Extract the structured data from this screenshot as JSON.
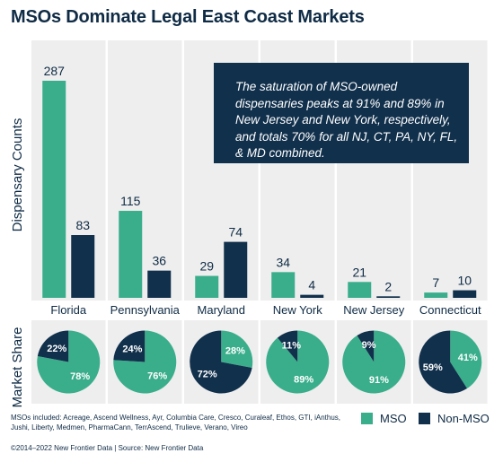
{
  "title": "MSOs Dominate Legal East Coast Markets",
  "callout": "The saturation of MSO-owned dispensaries peaks at 91% and 89% in New Jersey and New York, respectively, and totals 70% for all NJ, CT, PA, NY, FL, & MD combined.",
  "colors": {
    "mso": "#3aae8b",
    "non_mso": "#11304c",
    "panel": "#eeeeee",
    "text": "#0f2b45"
  },
  "legend": {
    "mso": "MSO",
    "non_mso": "Non-MSO"
  },
  "footnote": "MSOs included: Acreage, Ascend Wellness, Ayr, Columbia Care, Cresco, Curaleaf, Ethos, GTI, iAnthus, Jushi, Liberty, Medmen, PharmaCann, TerrAscend, Trulieve, Verano, Vireo",
  "copyright": "©2014–2022 New Frontier Data | Source: New Frontier Data",
  "chart_data": [
    {
      "type": "bar",
      "ylabel": "Dispensary Counts",
      "categories": [
        "Florida",
        "Pennsylvania",
        "Maryland",
        "New York",
        "New Jersey",
        "Connecticut"
      ],
      "series": [
        {
          "name": "MSO",
          "values": [
            287,
            115,
            29,
            34,
            21,
            7
          ]
        },
        {
          "name": "Non-MSO",
          "values": [
            83,
            36,
            74,
            4,
            2,
            10
          ]
        }
      ],
      "ylim": [
        0,
        287
      ],
      "legend": "bottom-right"
    },
    {
      "type": "pie",
      "ylabel": "Market Share",
      "categories": [
        "Florida",
        "Pennsylvania",
        "Maryland",
        "New York",
        "New Jersey",
        "Connecticut"
      ],
      "series": [
        {
          "name": "MSO",
          "values": [
            78,
            76,
            28,
            89,
            91,
            41
          ]
        },
        {
          "name": "Non-MSO",
          "values": [
            22,
            24,
            72,
            11,
            9,
            59
          ]
        }
      ],
      "labels": {
        "mso": [
          "78%",
          "76%",
          "28%",
          "89%",
          "91%",
          "41%"
        ],
        "non_mso": [
          "22%",
          "24%",
          "72%",
          "11%",
          "9%",
          "59%"
        ]
      }
    }
  ]
}
